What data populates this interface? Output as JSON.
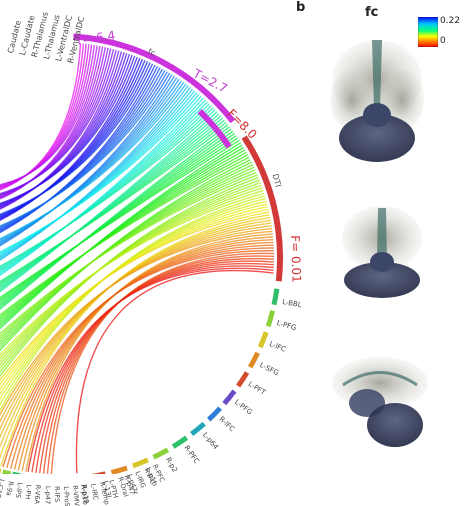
{
  "panel": {
    "letter": "b",
    "title": "fc"
  },
  "colorbar": {
    "max_label": "0.22",
    "min_label": "0",
    "colors": [
      "#0000ff",
      "#00c0ff",
      "#00ff80",
      "#ffff00",
      "#ff8000",
      "#ff0000"
    ]
  },
  "arc_annotations": [
    {
      "text": "T= 6.4",
      "color": "#c040d0"
    },
    {
      "text": "T=2.7",
      "color": "#c040d0"
    },
    {
      "text": "F=8.0",
      "color": "#d03030"
    },
    {
      "text": "F= 0.01",
      "color": "#d03030"
    }
  ],
  "arc_labels": {
    "upper": "fc",
    "lower": "DTI"
  },
  "region_labels_top": [
    "R-VentralDC",
    "L-VentralDC",
    "L-Thalamus",
    "R-Thalamus",
    "L-Caudate",
    "Caudate"
  ],
  "region_labels_right": [
    "L-BBL",
    "L-PFG",
    "L-lFC",
    "L-SFG",
    "L-PFT",
    "L-PFG",
    "R-lFC",
    "L-p64",
    "R-PFC",
    "R-p2",
    "L-p1b",
    "R-p47",
    "L-13l",
    "R-p1b"
  ],
  "region_labels_bottom": [
    "R-PFC",
    "R-IFC",
    "L-IRG",
    "L-p47r",
    "R-Oral",
    "L-PTH",
    "R-Temp",
    "L-IRC",
    "R-p10",
    "R-VMV",
    "L-ProS",
    "R-lFS",
    "L-p47",
    "R-V6A",
    "L-PH",
    "L-IPS",
    "R-9a",
    "L-CAE"
  ],
  "brain_views": [
    "axial-view",
    "coronal-view",
    "sagittal-view"
  ]
}
